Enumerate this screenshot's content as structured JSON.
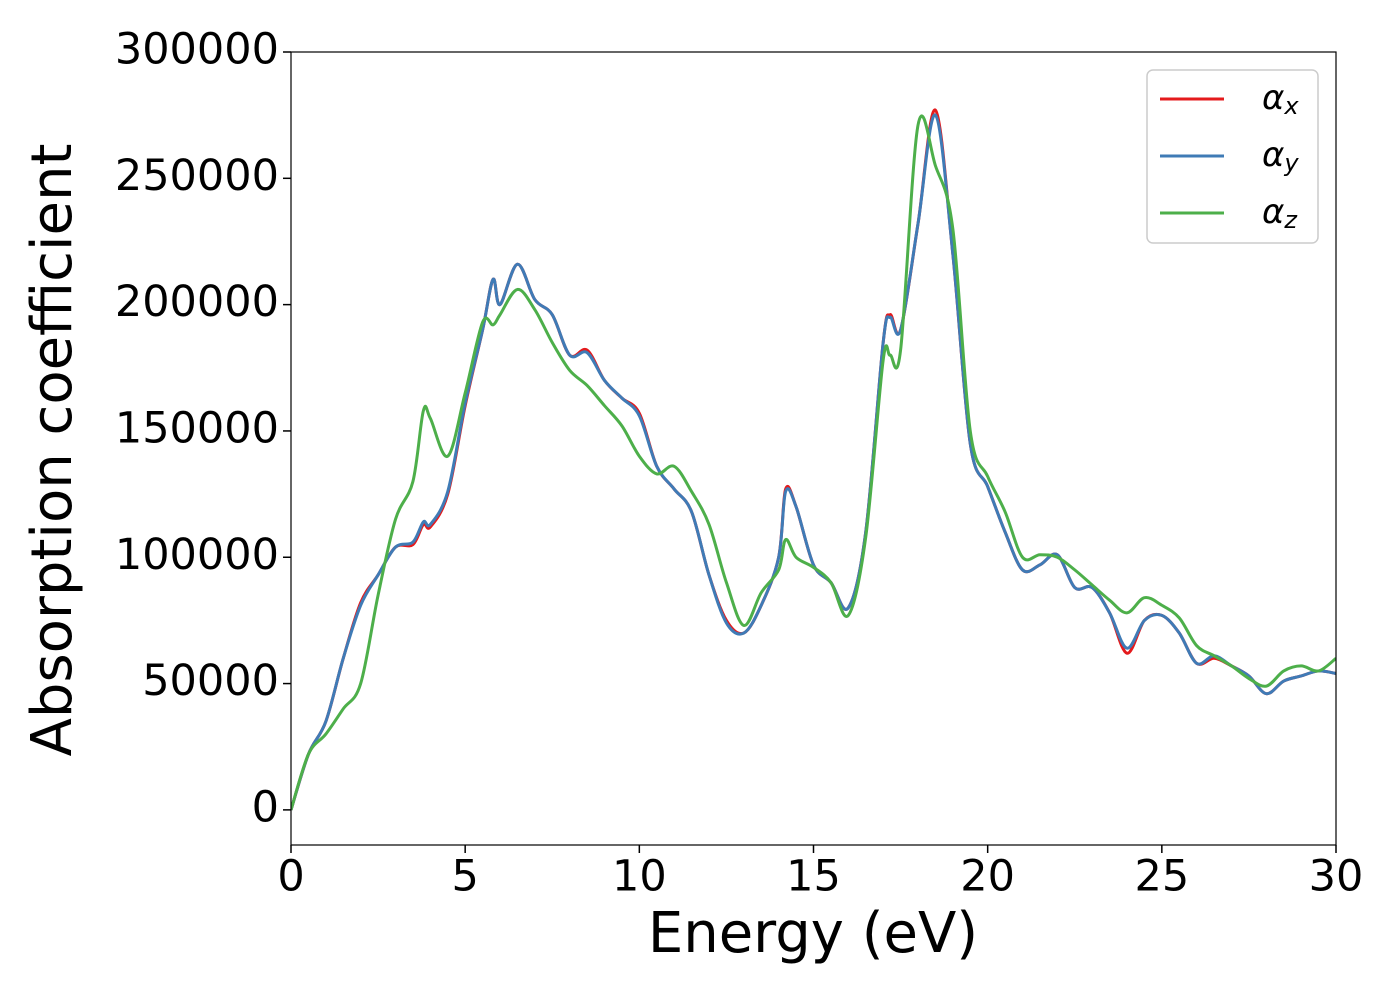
{
  "chart_data": {
    "type": "line",
    "xlabel": "Energy (eV)",
    "ylabel": "Absorption coefficient",
    "x": [
      0,
      0.5,
      1,
      1.5,
      2,
      2.5,
      3,
      3.5,
      3.8,
      4,
      4.5,
      5,
      5.5,
      5.8,
      6,
      6.5,
      7,
      7.5,
      8,
      8.5,
      9,
      9.5,
      10,
      10.5,
      11,
      11.5,
      12,
      12.5,
      13,
      13.5,
      14,
      14.2,
      14.5,
      15,
      15.5,
      16,
      16.5,
      17,
      17.2,
      17.5,
      18,
      18.5,
      19,
      19.5,
      20,
      20.5,
      21,
      21.5,
      22,
      22.5,
      23,
      23.5,
      24,
      24.5,
      25,
      25.5,
      26,
      26.5,
      27,
      27.5,
      28,
      28.5,
      29,
      29.5,
      30
    ],
    "series": [
      {
        "name": "αx",
        "color": "#e41a1c",
        "values": [
          0,
          22000,
          35000,
          60000,
          82000,
          93000,
          104000,
          105000,
          113000,
          112000,
          125000,
          160000,
          190000,
          210000,
          200000,
          216000,
          202000,
          196000,
          180000,
          182000,
          170000,
          163000,
          157000,
          136000,
          127000,
          118000,
          93000,
          75000,
          70000,
          81000,
          100000,
          127000,
          120000,
          97000,
          90000,
          80000,
          110000,
          185000,
          196000,
          190000,
          232000,
          277000,
          220000,
          145000,
          128000,
          110000,
          95000,
          97000,
          101000,
          88000,
          88000,
          78000,
          62000,
          75000,
          77000,
          70000,
          58000,
          60000,
          57000,
          53000,
          46000,
          51000,
          53000,
          55000,
          54000
        ]
      },
      {
        "name": "αy",
        "color": "#3f7bb6",
        "values": [
          0,
          22000,
          35000,
          60000,
          81000,
          93000,
          104000,
          106000,
          114000,
          113000,
          126000,
          161000,
          190000,
          210000,
          200000,
          216000,
          202000,
          196000,
          180000,
          181000,
          170000,
          163000,
          156000,
          136000,
          127000,
          118000,
          93000,
          74000,
          70000,
          81000,
          100000,
          126000,
          120000,
          97000,
          90000,
          80000,
          110000,
          185000,
          195000,
          190000,
          232000,
          275000,
          220000,
          145000,
          128000,
          110000,
          95000,
          97000,
          101000,
          88000,
          88000,
          78000,
          64000,
          75000,
          77000,
          70000,
          58000,
          61000,
          57000,
          53000,
          46000,
          51000,
          53000,
          55000,
          54000
        ]
      },
      {
        "name": "αz",
        "color": "#4daf4a",
        "values": [
          0,
          22000,
          30000,
          40000,
          50000,
          85000,
          115000,
          130000,
          158000,
          155000,
          140000,
          165000,
          193000,
          192000,
          196000,
          206000,
          198000,
          185000,
          174000,
          168000,
          160000,
          152000,
          140000,
          133000,
          136000,
          126000,
          113000,
          90000,
          73000,
          86000,
          95000,
          107000,
          100000,
          96000,
          90000,
          77000,
          108000,
          178000,
          180000,
          182000,
          271000,
          255000,
          230000,
          150000,
          132000,
          118000,
          100000,
          101000,
          100000,
          95000,
          89000,
          83000,
          78000,
          84000,
          81000,
          76000,
          65000,
          61000,
          57000,
          52000,
          49000,
          55000,
          57000,
          55000,
          60000
        ]
      }
    ],
    "xlim": [
      0,
      30
    ],
    "xticks": [
      0,
      5,
      10,
      15,
      20,
      25,
      30
    ],
    "ylim": [
      -13900,
      300000
    ],
    "yticks": [
      0,
      50000,
      100000,
      150000,
      200000,
      250000,
      300000
    ],
    "grid": false,
    "legend": "upper right"
  }
}
